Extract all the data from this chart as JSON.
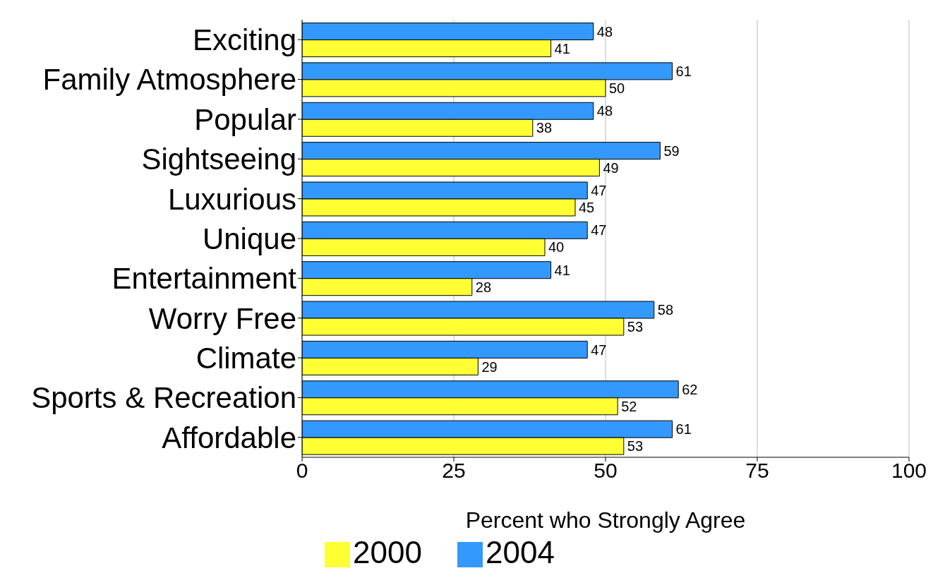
{
  "chart_data": {
    "type": "bar",
    "orientation": "horizontal",
    "xlabel": "Percent who Strongly Agree",
    "categories": [
      "Exciting",
      "Family Atmosphere",
      "Popular",
      "Sightseeing",
      "Luxurious",
      "Unique",
      "Entertainment",
      "Worry Free",
      "Climate",
      "Sports & Recreation",
      "Affordable"
    ],
    "series": [
      {
        "name": "2004",
        "color": "#3399ff",
        "values": [
          48,
          61,
          48,
          59,
          47,
          47,
          41,
          58,
          47,
          62,
          61
        ]
      },
      {
        "name": "2000",
        "color": "#ffff33",
        "values": [
          41,
          50,
          38,
          49,
          45,
          40,
          28,
          53,
          29,
          52,
          53
        ]
      }
    ],
    "xlim": [
      0,
      100
    ],
    "xticks": [
      0,
      25,
      50,
      75,
      100
    ],
    "grid": "x",
    "legend": "bottom",
    "data_labels": true
  }
}
